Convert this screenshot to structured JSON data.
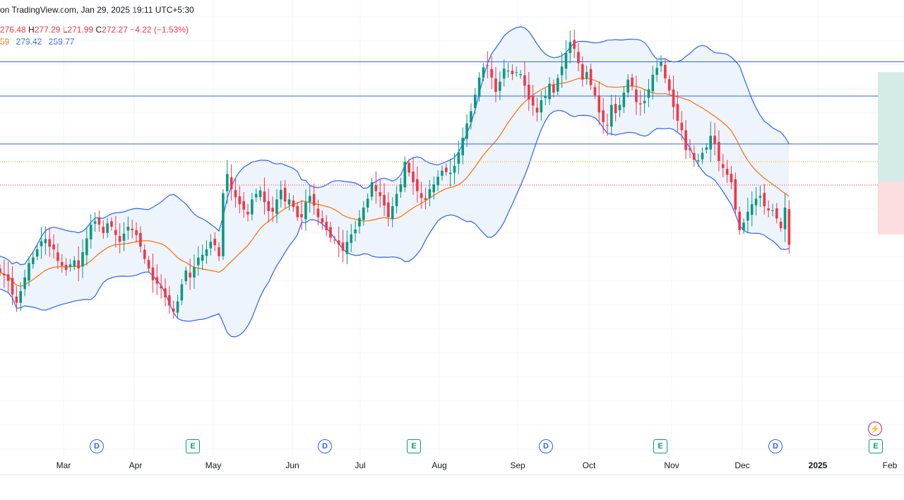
{
  "header": {
    "published": "on TradingView.com, Jan 29, 2025 19:11 UTC+5:30"
  },
  "ohlc": {
    "open": "276.48",
    "high_label": "H",
    "high": "277.29",
    "low_label": "L",
    "low": "271.99",
    "close_label": "C",
    "close": "272.27",
    "change": "−4.22 (−1.53%)"
  },
  "indicator": {
    "basis": "59",
    "upper": "279.42",
    "lower": "259.77"
  },
  "colors": {
    "up": "#089981",
    "down": "#f23645",
    "band": "#2962ff",
    "basis": "#ff6d00",
    "band_fill": "#eef4fc",
    "hline": "#2962ff",
    "tp_zone": "#d5ece6",
    "sl_zone": "#fbdcdf"
  },
  "badges": [
    {
      "type": "D",
      "kind": "dividends",
      "label": "D"
    },
    {
      "type": "E",
      "kind": "earnings",
      "label": "E"
    },
    {
      "type": "D",
      "kind": "dividends",
      "label": "D"
    },
    {
      "type": "E",
      "kind": "earnings",
      "label": "E"
    },
    {
      "type": "D",
      "kind": "dividends",
      "label": "D"
    },
    {
      "type": "E",
      "kind": "earnings",
      "label": "E"
    },
    {
      "type": "D",
      "kind": "dividends",
      "label": "D"
    },
    {
      "type": "E",
      "kind": "earnings",
      "label": "E"
    }
  ],
  "x_axis": {
    "labels": [
      "Mar",
      "Apr",
      "May",
      "Jun",
      "Jul",
      "Aug",
      "Sep",
      "Oct",
      "Nov",
      "Dec",
      "2025",
      "Feb"
    ]
  },
  "chart_data": {
    "type": "candlestick",
    "title": "",
    "xlabel": "",
    "ylabel": "",
    "x_range": [
      "2024-02",
      "2025-02"
    ],
    "y_range": [
      245,
      310
    ],
    "grid": true,
    "indicators": [
      "Bollinger Bands"
    ],
    "horizontal_lines": [
      302,
      297,
      290
    ],
    "dotted_lines": [
      287.4,
      284.0
    ],
    "position_zone": {
      "entry": 284.5,
      "target": 300.5,
      "stop": 276.8
    },
    "last_candle": {
      "open": 276.48,
      "high": 277.29,
      "low": 271.99,
      "close": 272.27
    },
    "series_close": [
      271.2,
      270.8,
      270.0,
      268.0,
      266.8,
      268.5,
      270.5,
      272.6,
      273.4,
      274.6,
      275.8,
      276.1,
      275.0,
      274.6,
      272.9,
      272.2,
      271.6,
      272.4,
      273.0,
      271.8,
      274.2,
      276.2,
      278.2,
      278.7,
      278.2,
      277.0,
      278.4,
      277.9,
      276.7,
      275.7,
      276.9,
      277.9,
      277.4,
      276.7,
      275.0,
      273.2,
      271.8,
      270.1,
      269.6,
      268.9,
      267.6,
      266.4,
      265.5,
      267.0,
      269.5,
      271.5,
      270.5,
      272.0,
      273.4,
      273.8,
      274.6,
      275.7,
      275.2,
      273.6,
      282.8,
      285.6,
      283.4,
      282.2,
      281.2,
      280.4,
      279.7,
      281.9,
      282.7,
      283.2,
      281.5,
      280.2,
      280.1,
      281.9,
      283.3,
      281.6,
      281.9,
      280.8,
      279.3,
      279.3,
      281.5,
      282.4,
      281.0,
      279.3,
      278.5,
      277.4,
      276.3,
      275.9,
      275.3,
      274.4,
      275.7,
      276.8,
      277.5,
      279.2,
      280.7,
      282.0,
      284.4,
      283.1,
      282.4,
      281.0,
      279.3,
      280.9,
      282.7,
      284.1,
      287.4,
      285.8,
      284.4,
      283.1,
      282.1,
      281.8,
      283.4,
      284.1,
      285.2,
      286.1,
      285.9,
      285.8,
      286.8,
      288.8,
      290.9,
      293.0,
      294.8,
      297.2,
      299.7,
      301.2,
      301.4,
      299.7,
      297.6,
      299.1,
      301.0,
      300.7,
      300.2,
      300.5,
      300.2,
      298.5,
      296.5,
      295.6,
      294.6,
      296.4,
      297.0,
      298.8,
      297.5,
      299.6,
      301.3,
      303.3,
      304.9,
      303.9,
      301.8,
      299.4,
      300.5,
      298.6,
      297.1,
      294.6,
      293.2,
      292.7,
      295.7,
      294.5,
      295.7,
      297.5,
      299.4,
      298.4,
      296.1,
      295.8,
      296.3,
      298.0,
      300.1,
      301.1,
      302.0,
      299.6,
      297.8,
      295.4,
      293.4,
      292.0,
      289.1,
      289.1,
      287.7,
      287.6,
      288.7,
      289.5,
      291.2,
      290.0,
      287.5,
      286.5,
      285.5,
      284.4,
      280.4,
      277.4,
      278.5,
      280.1,
      281.2,
      282.0,
      282.4,
      280.9,
      280.3,
      280.3,
      279.1,
      277.7,
      280.7,
      280.9
    ]
  }
}
